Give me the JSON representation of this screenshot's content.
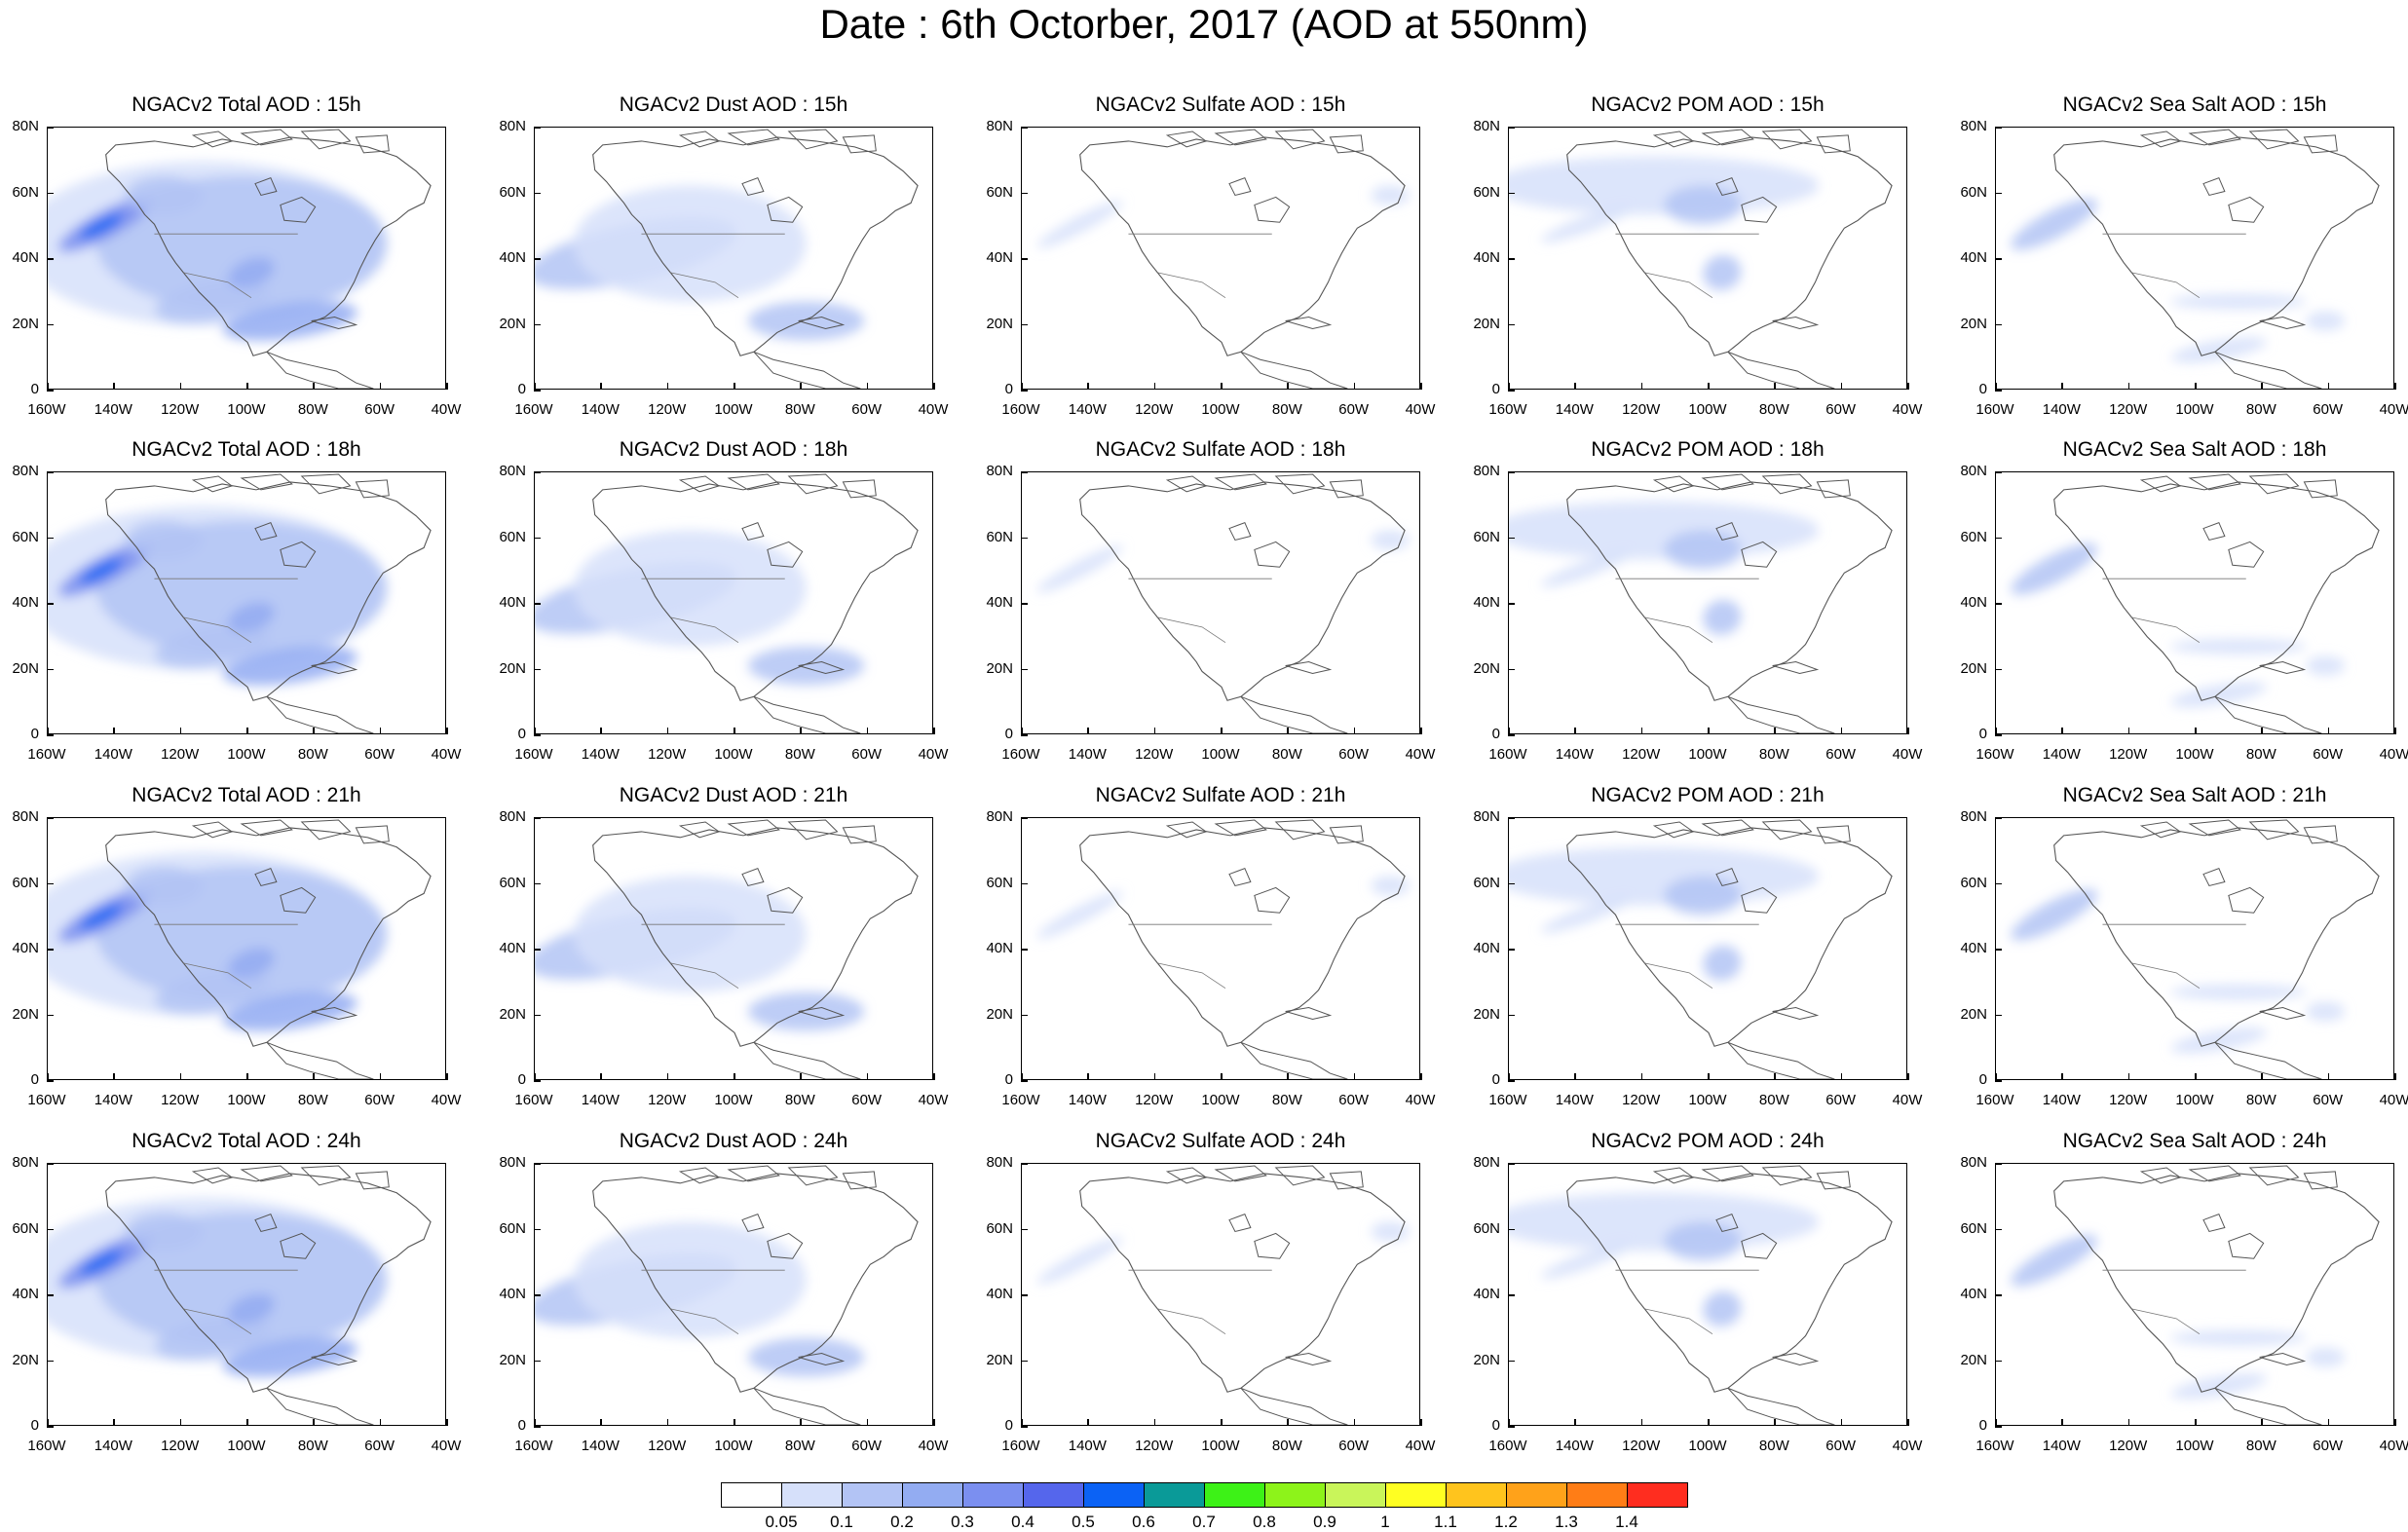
{
  "title": "Date : 6th Octorber, 2017 (AOD at 550nm)",
  "y_ticks": [
    "80N",
    "60N",
    "40N",
    "20N",
    "0"
  ],
  "x_ticks": [
    "160W",
    "140W",
    "120W",
    "100W",
    "80W",
    "60W",
    "40W"
  ],
  "panels": [
    [
      "NGACv2 Total AOD : 15h",
      "NGACv2 Dust AOD : 15h",
      "NGACv2 Sulfate AOD : 15h",
      "NGACv2 POM AOD : 15h",
      "NGACv2 Sea Salt AOD : 15h"
    ],
    [
      "NGACv2 Total AOD : 18h",
      "NGACv2 Dust AOD : 18h",
      "NGACv2 Sulfate AOD : 18h",
      "NGACv2 POM AOD : 18h",
      "NGACv2 Sea Salt AOD : 18h"
    ],
    [
      "NGACv2 Total AOD : 21h",
      "NGACv2 Dust AOD : 21h",
      "NGACv2 Sulfate AOD : 21h",
      "NGACv2 POM AOD : 21h",
      "NGACv2 Sea Salt AOD : 21h"
    ],
    [
      "NGACv2 Total AOD : 24h",
      "NGACv2 Dust AOD : 24h",
      "NGACv2 Sulfate AOD : 24h",
      "NGACv2 POM AOD : 24h",
      "NGACv2 Sea Salt  AOD : 24h"
    ]
  ],
  "colorbar": {
    "labels": [
      "0.05",
      "0.1",
      "0.2",
      "0.3",
      "0.4",
      "0.5",
      "0.6",
      "0.7",
      "0.8",
      "0.9",
      "1",
      "1.1",
      "1.2",
      "1.3",
      "1.4"
    ],
    "colors": [
      "#ffffff",
      "#d6e0fa",
      "#b3c4f5",
      "#93acf2",
      "#7b8ff0",
      "#5566ec",
      "#0b62f5",
      "#0a9a98",
      "#3df217",
      "#8df31a",
      "#c9f55a",
      "#ffff22",
      "#ffc41d",
      "#ffa21a",
      "#ff7d16",
      "#ff2d1f"
    ]
  }
}
